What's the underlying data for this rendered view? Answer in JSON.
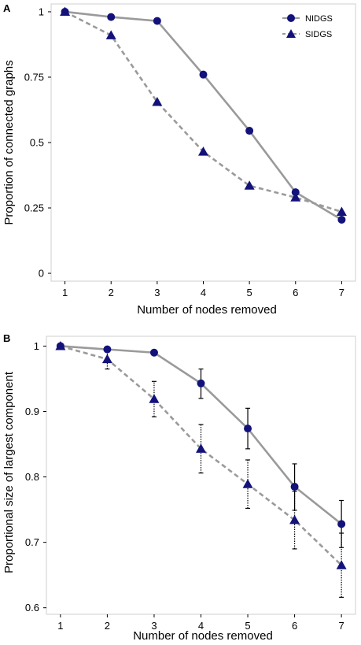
{
  "colors": {
    "line": "#9a9a9a",
    "marker": "#12127a",
    "axis": "#000000",
    "panel_border": "#cfcfcf",
    "error_bar": "#000000"
  },
  "legend": {
    "items": [
      {
        "label": "NIDGS",
        "marker": "circle",
        "dash": "solid"
      },
      {
        "label": "SIDGS",
        "marker": "triangle",
        "dash": "dashed"
      }
    ]
  },
  "chart_data": [
    {
      "type": "line",
      "panel_label": "A",
      "xlabel": "Number of nodes removed",
      "ylabel": "Proportion of connected graphs",
      "xlim": [
        0.7,
        7.3
      ],
      "ylim": [
        -0.03,
        1.03
      ],
      "xticks": [
        1,
        2,
        3,
        4,
        5,
        6,
        7
      ],
      "xtick_labels": [
        "1",
        "2",
        "3",
        "4",
        "5",
        "6",
        "7"
      ],
      "yticks": [
        0,
        0.25,
        0.5,
        0.75,
        1
      ],
      "ytick_labels": [
        "0",
        "0.25",
        "0.5",
        "0.75",
        "1"
      ],
      "x": [
        1,
        2,
        3,
        4,
        5,
        6,
        7
      ],
      "series": [
        {
          "name": "NIDGS",
          "values": [
            1.0,
            0.98,
            0.965,
            0.76,
            0.545,
            0.31,
            0.205
          ]
        },
        {
          "name": "SIDGS",
          "values": [
            1.0,
            0.91,
            0.655,
            0.465,
            0.335,
            0.29,
            0.235
          ]
        }
      ],
      "legend_position": "top-right",
      "grid": false
    },
    {
      "type": "line",
      "panel_label": "B",
      "xlabel": "Number of nodes removed",
      "ylabel": "Proportional size of largest component",
      "xlim": [
        0.7,
        7.3
      ],
      "ylim": [
        0.59,
        1.015
      ],
      "xticks": [
        1,
        2,
        3,
        4,
        5,
        6,
        7
      ],
      "xtick_labels": [
        "1",
        "2",
        "3",
        "4",
        "5",
        "6",
        "7"
      ],
      "yticks": [
        0.6,
        0.7,
        0.8,
        0.9,
        1
      ],
      "ytick_labels": [
        "0.6",
        "0.7",
        "0.8",
        "0.9",
        "1"
      ],
      "x": [
        1,
        2,
        3,
        4,
        5,
        6,
        7
      ],
      "series": [
        {
          "name": "NIDGS",
          "values": [
            1.0,
            0.995,
            0.99,
            0.943,
            0.874,
            0.785,
            0.728
          ],
          "err_low": [
            1.0,
            0.995,
            0.99,
            0.92,
            0.843,
            0.749,
            0.692
          ],
          "err_high": [
            1.0,
            0.995,
            0.99,
            0.965,
            0.905,
            0.82,
            0.764
          ]
        },
        {
          "name": "SIDGS",
          "values": [
            1.0,
            0.98,
            0.919,
            0.843,
            0.789,
            0.734,
            0.665
          ],
          "err_low": [
            1.0,
            0.965,
            0.892,
            0.806,
            0.752,
            0.69,
            0.616
          ],
          "err_high": [
            1.0,
            0.993,
            0.946,
            0.88,
            0.826,
            0.778,
            0.714
          ]
        }
      ],
      "legend_position": "none",
      "grid": false
    }
  ]
}
